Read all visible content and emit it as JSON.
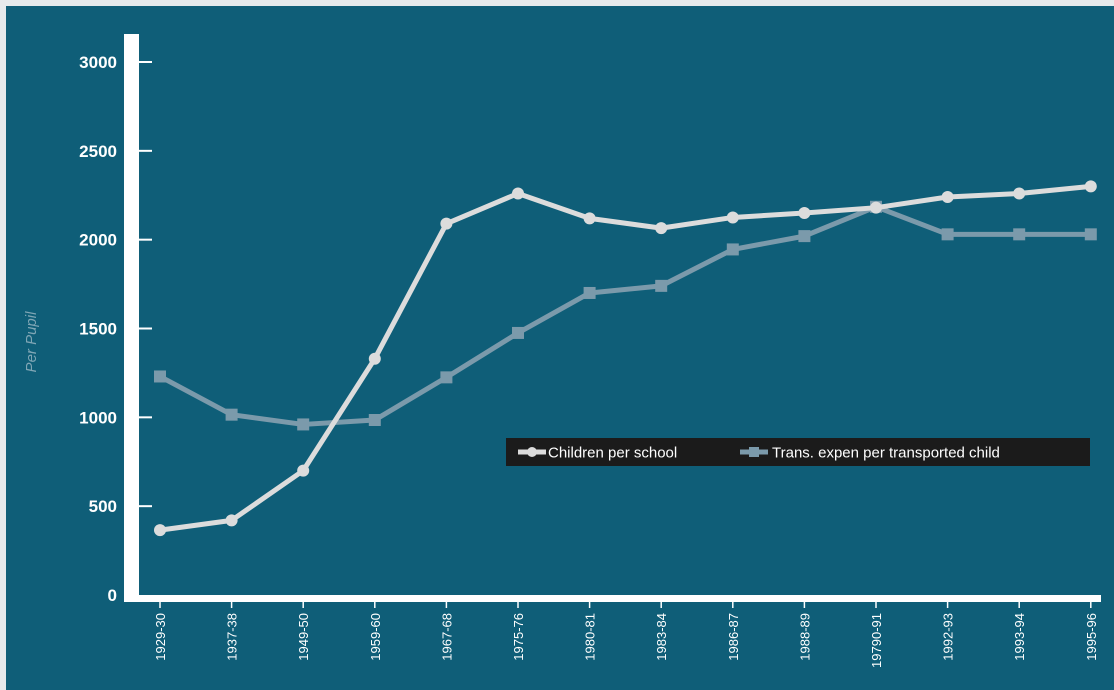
{
  "chart_data": {
    "type": "line",
    "title": "",
    "xlabel": "",
    "ylabel": "Per Pupil",
    "ylim": [
      0,
      3000
    ],
    "yticks": [
      0,
      500,
      1000,
      1500,
      2000,
      2500,
      3000
    ],
    "grid": false,
    "legend_position": "right-center",
    "categories": [
      "1929-30",
      "1937-38",
      "1949-50",
      "1959-60",
      "1967-68",
      "1975-76",
      "1980-81",
      "1983-84",
      "1986-87",
      "1988-89",
      "19790-91",
      "1992-93",
      "1993-94",
      "1995-96"
    ],
    "series": [
      {
        "name": "Children per school",
        "marker": "circle",
        "color": "#dcdcdc",
        "values": [
          365,
          420,
          700,
          1330,
          2090,
          2260,
          2120,
          2065,
          2125,
          2150,
          2180,
          2240,
          2260,
          2300
        ]
      },
      {
        "name": "Trans. expen per transported child",
        "marker": "square",
        "color": "#7b9aab",
        "values": [
          1230,
          1015,
          960,
          985,
          1225,
          1475,
          1700,
          1740,
          1945,
          2020,
          2185,
          2030,
          2030,
          2030
        ]
      }
    ]
  },
  "colors": {
    "panel_background": "#0f5e78",
    "page_border": "#e6eaec",
    "axis": "#ffffff",
    "legend_background": "#1b1b1b"
  }
}
